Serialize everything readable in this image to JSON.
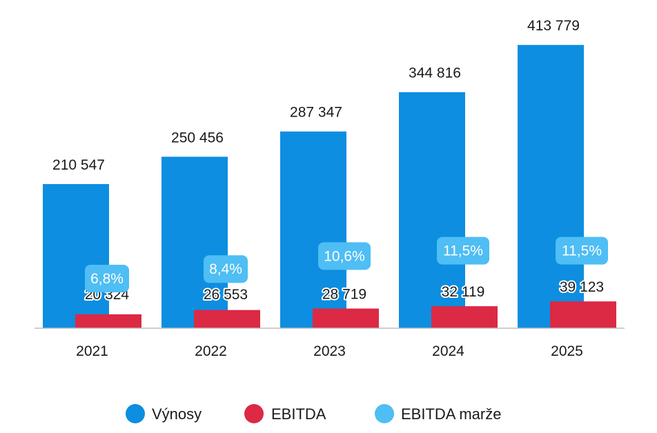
{
  "chart_data": {
    "type": "bar",
    "categories": [
      "2021",
      "2022",
      "2023",
      "2024",
      "2025"
    ],
    "series": [
      {
        "name": "Výnosy",
        "values": [
          210547,
          250456,
          287347,
          344816,
          413779
        ],
        "labels": [
          "210 547",
          "250 456",
          "287 347",
          "344 816",
          "413 779"
        ]
      },
      {
        "name": "EBITDA",
        "values": [
          20324,
          26553,
          28719,
          32119,
          39123
        ],
        "labels": [
          "20 324",
          "26 553",
          "28 719",
          "32 119",
          "39 123"
        ]
      },
      {
        "name": "EBITDA marže",
        "values": [
          6.8,
          8.4,
          10.6,
          11.5,
          11.5
        ],
        "labels": [
          "6,8%",
          "8,4%",
          "10,6%",
          "11,5%",
          "11,5%"
        ]
      }
    ],
    "ylim": [
      0,
      420000
    ],
    "grid": false,
    "legend": "bottom",
    "colors": {
      "Výnosy": "#0d8ee0",
      "EBITDA": "#dc2944",
      "EBITDA marže": "#4ebef4"
    }
  }
}
